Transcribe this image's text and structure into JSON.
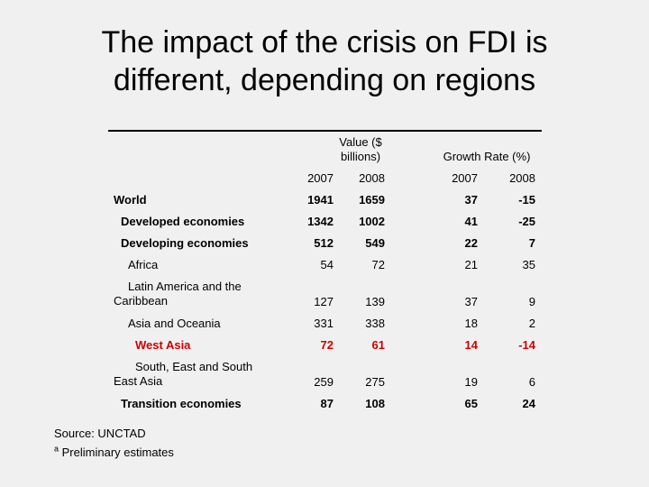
{
  "title_line1": "The impact of the crisis on FDI is",
  "title_line2": "different, depending on regions",
  "header": {
    "value_group": "Value ($ billions)",
    "growth_group": "Growth Rate (%)",
    "years": [
      "2007",
      "2008",
      "2007",
      "2008"
    ]
  },
  "rows": [
    {
      "label": "World",
      "values": [
        "1941",
        "1659",
        "37",
        "-15"
      ]
    },
    {
      "label": "Developed economies",
      "values": [
        "1342",
        "1002",
        "41",
        "-25"
      ]
    },
    {
      "label": "Developing economies",
      "values": [
        "512",
        "549",
        "22",
        "7"
      ]
    },
    {
      "label": "Africa",
      "values": [
        "54",
        "72",
        "21",
        "35"
      ]
    },
    {
      "label": "Latin America and the Caribbean",
      "values": [
        "127",
        "139",
        "37",
        "9"
      ]
    },
    {
      "label": "Asia and Oceania",
      "values": [
        "331",
        "338",
        "18",
        "2"
      ]
    },
    {
      "label": "West Asia",
      "values": [
        "72",
        "61",
        "14",
        "-14"
      ]
    },
    {
      "label": "South, East and South East Asia",
      "values": [
        "259",
        "275",
        "19",
        "6"
      ]
    },
    {
      "label": "Transition economies",
      "values": [
        "87",
        "108",
        "65",
        "24"
      ]
    }
  ],
  "source": "Source: UNCTAD",
  "footnote_marker": "a",
  "footnote_text": "Preliminary estimates",
  "colors": {
    "highlight": "#cc0000",
    "background": "#f0f0f0"
  }
}
